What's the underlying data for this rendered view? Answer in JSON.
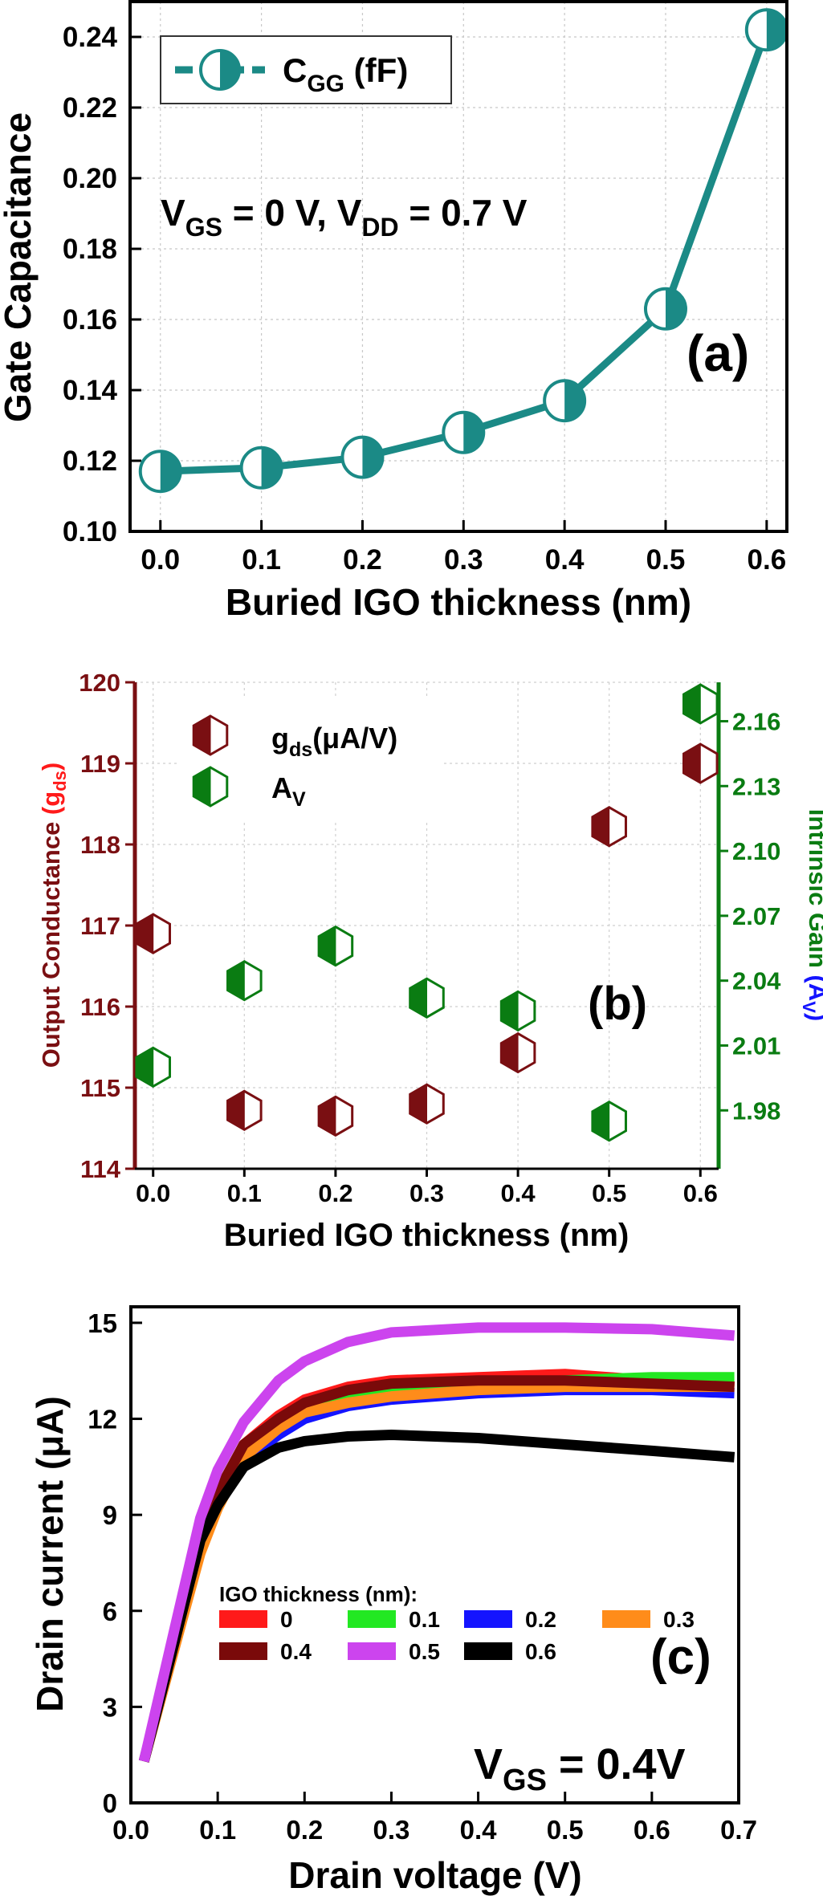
{
  "chart_data": [
    {
      "panel_label": "(a)",
      "type": "line",
      "xlabel": "Buried IGO thickness (nm)",
      "ylabel": "Gate Capacitance",
      "xlim": [
        -0.03,
        0.62
      ],
      "ylim": [
        0.1,
        0.25
      ],
      "xticks": [
        "0.0",
        "0.1",
        "0.2",
        "0.3",
        "0.4",
        "0.5",
        "0.6"
      ],
      "yticks": [
        "0.10",
        "0.12",
        "0.14",
        "0.16",
        "0.18",
        "0.20",
        "0.22",
        "0.24"
      ],
      "grid": true,
      "legend_position": "top-left",
      "annotation": {
        "v1": "V",
        "s1": "GS",
        "m1": " = 0 V, V",
        "s2": "DD",
        "m2": " = 0.7 V"
      },
      "series": [
        {
          "name_main": "C",
          "name_sub": "GG",
          "name_suffix": " (fF)",
          "color": "#1b8a86",
          "x": [
            0.0,
            0.1,
            0.2,
            0.3,
            0.4,
            0.5,
            0.6
          ],
          "y": [
            0.117,
            0.118,
            0.121,
            0.128,
            0.137,
            0.163,
            0.242
          ]
        }
      ]
    },
    {
      "panel_label": "(b)",
      "type": "scatter",
      "xlabel": "Buried IGO thickness (nm)",
      "ylabel_left": {
        "main": "Output Conductance ",
        "paren_open": "(g",
        "sub": "ds",
        "paren_close": ")"
      },
      "ylabel_right": {
        "main": "Intrinsic Gain ",
        "paren_open": "(A",
        "sub": "V",
        "paren_close": ")"
      },
      "xlim": [
        -0.02,
        0.62
      ],
      "ylim_left": [
        114,
        120
      ],
      "ylim_right": [
        1.953,
        2.178
      ],
      "xticks": [
        "0.0",
        "0.1",
        "0.2",
        "0.3",
        "0.4",
        "0.5",
        "0.6"
      ],
      "yticks_left": [
        "114",
        "115",
        "116",
        "117",
        "118",
        "119",
        "120"
      ],
      "yticks_right": [
        "1.98",
        "2.01",
        "2.04",
        "2.07",
        "2.10",
        "2.13",
        "2.16"
      ],
      "grid": true,
      "legend_position": "top-left",
      "series": [
        {
          "name_main": "g",
          "name_sub": "ds",
          "name_suffix": "(μA/V)",
          "axis": "left",
          "color": "#7a0f12",
          "x": [
            0.0,
            0.1,
            0.2,
            0.3,
            0.4,
            0.5,
            0.6
          ],
          "y": [
            116.9,
            114.72,
            114.65,
            114.8,
            115.43,
            118.22,
            119.0
          ]
        },
        {
          "name_main": "A",
          "name_sub": "V",
          "name_suffix": "",
          "axis": "right",
          "color": "#0a7c12",
          "x": [
            0.0,
            0.1,
            0.2,
            0.3,
            0.4,
            0.5,
            0.6
          ],
          "y": [
            2.0,
            2.04,
            2.056,
            2.032,
            2.026,
            1.975,
            2.168
          ]
        }
      ]
    },
    {
      "panel_label": "(c)",
      "type": "line",
      "xlabel": "Drain voltage (V)",
      "ylabel": "Drain current (μA)",
      "xlim": [
        0.0,
        0.7
      ],
      "ylim": [
        0,
        15.5
      ],
      "xticks": [
        "0.0",
        "0.1",
        "0.2",
        "0.3",
        "0.4",
        "0.5",
        "0.6",
        "0.7"
      ],
      "yticks": [
        "0",
        "3",
        "6",
        "9",
        "12",
        "15"
      ],
      "grid": false,
      "legend_title": "IGO thickness (nm):",
      "legend_position": "center",
      "annotation": {
        "v1": "V",
        "s1": "GS",
        "m1": " = 0.4V"
      },
      "x": [
        0.015,
        0.05,
        0.08,
        0.1,
        0.13,
        0.17,
        0.2,
        0.25,
        0.3,
        0.4,
        0.5,
        0.6,
        0.695
      ],
      "series": [
        {
          "name": "0",
          "color": "#ff1a1a",
          "values": [
            1.3,
            5.0,
            8.2,
            9.6,
            11.2,
            12.1,
            12.6,
            13.0,
            13.2,
            13.3,
            13.4,
            13.2,
            13.0
          ]
        },
        {
          "name": "0.1",
          "color": "#22e822",
          "values": [
            1.3,
            5.0,
            8.2,
            9.5,
            10.9,
            11.8,
            12.3,
            12.7,
            12.9,
            13.1,
            13.2,
            13.3,
            13.3
          ]
        },
        {
          "name": "0.2",
          "color": "#1414ff",
          "values": [
            1.3,
            5.0,
            8.0,
            9.3,
            10.7,
            11.5,
            12.0,
            12.4,
            12.6,
            12.8,
            12.9,
            12.9,
            12.8
          ]
        },
        {
          "name": "0.3",
          "color": "#ff8c1a",
          "values": [
            1.3,
            4.8,
            7.8,
            9.2,
            10.8,
            11.7,
            12.2,
            12.5,
            12.7,
            12.9,
            13.0,
            13.0,
            13.0
          ]
        },
        {
          "name": "0.4",
          "color": "#7a0a0a",
          "values": [
            1.3,
            5.0,
            8.3,
            9.7,
            11.2,
            12.0,
            12.5,
            12.9,
            13.1,
            13.2,
            13.2,
            13.1,
            13.0
          ]
        },
        {
          "name": "0.5",
          "color": "#cc44ee",
          "values": [
            1.3,
            5.4,
            8.9,
            10.4,
            11.9,
            13.2,
            13.8,
            14.4,
            14.7,
            14.85,
            14.85,
            14.8,
            14.6
          ]
        },
        {
          "name": "0.6",
          "color": "#000000",
          "values": [
            1.3,
            5.0,
            8.2,
            9.3,
            10.5,
            11.1,
            11.3,
            11.45,
            11.5,
            11.4,
            11.2,
            11.0,
            10.8
          ]
        }
      ]
    }
  ]
}
